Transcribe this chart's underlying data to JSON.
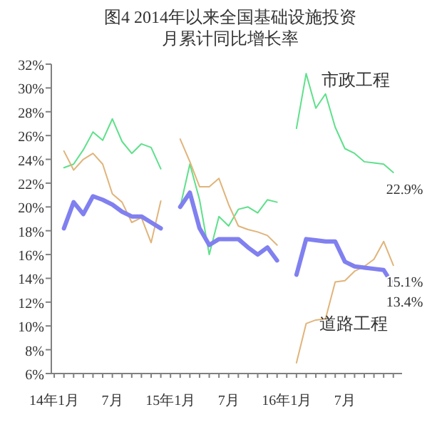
{
  "chart_data": {
    "type": "line",
    "title": "图4 2014年以来全国基础设施投资",
    "subtitle": "月累计同比增长率",
    "categories": [
      "14年1月",
      null,
      null,
      null,
      null,
      null,
      "7月",
      null,
      null,
      null,
      null,
      null,
      "15年1月",
      null,
      null,
      null,
      null,
      null,
      "7月",
      null,
      null,
      null,
      null,
      null,
      "16年1月",
      null,
      null,
      null,
      null,
      null,
      "7月",
      null,
      null,
      null,
      null,
      null
    ],
    "ylim": [
      6,
      32
    ],
    "yticks": [
      {
        "value": 6,
        "label": "6%"
      },
      {
        "value": 8,
        "label": "8%"
      },
      {
        "value": 10,
        "label": "10%"
      },
      {
        "value": 12,
        "label": "12%"
      },
      {
        "value": 14,
        "label": "14%"
      },
      {
        "value": 16,
        "label": "16%"
      },
      {
        "value": 18,
        "label": "18%"
      },
      {
        "value": 20,
        "label": "20%"
      },
      {
        "value": 22,
        "label": "22%"
      },
      {
        "value": 24,
        "label": "24%"
      },
      {
        "value": 26,
        "label": "26%"
      },
      {
        "value": 28,
        "label": "28%"
      },
      {
        "value": 30,
        "label": "30%"
      },
      {
        "value": 32,
        "label": "32%"
      }
    ],
    "grid": false,
    "series": [
      {
        "name": "市政工程",
        "color": "#5ee08a",
        "values": [
          null,
          23.3,
          23.6,
          24.8,
          26.3,
          25.6,
          27.4,
          25.5,
          24.5,
          25.3,
          25.0,
          23.2,
          null,
          20.0,
          23.6,
          20.6,
          16.0,
          19.2,
          18.4,
          19.8,
          20.0,
          19.5,
          20.6,
          20.4,
          null,
          26.6,
          31.2,
          28.3,
          29.5,
          26.7,
          24.9,
          24.5,
          23.8,
          23.7,
          23.6,
          22.9
        ],
        "value_labels": [
          null,
          null,
          null,
          null,
          null,
          null,
          null,
          null,
          null,
          null,
          null,
          null,
          null,
          null,
          null,
          null,
          null,
          null,
          null,
          null,
          null,
          null,
          null,
          null,
          null,
          null,
          null,
          null,
          null,
          null,
          null,
          null,
          null,
          null,
          null,
          "22.9%"
        ]
      },
      {
        "name": "道路工程",
        "color": "#e0b47a",
        "values": [
          null,
          24.7,
          23.1,
          24.0,
          24.5,
          23.6,
          21.1,
          20.4,
          18.7,
          19.1,
          17.0,
          20.5,
          null,
          25.7,
          23.8,
          21.7,
          21.7,
          22.4,
          20.2,
          18.4,
          18.1,
          17.9,
          17.6,
          16.8,
          null,
          6.9,
          10.2,
          10.5,
          10.6,
          13.7,
          13.8,
          14.6,
          15.0,
          15.6,
          17.1,
          15.1
        ],
        "value_labels": [
          null,
          null,
          null,
          null,
          null,
          null,
          null,
          null,
          null,
          null,
          null,
          null,
          null,
          null,
          null,
          null,
          null,
          null,
          null,
          null,
          null,
          null,
          null,
          null,
          null,
          null,
          null,
          null,
          null,
          null,
          null,
          null,
          null,
          null,
          null,
          "15.1%"
        ]
      },
      {
        "color": "#8080f0",
        "values": [
          null,
          18.2,
          20.4,
          19.4,
          20.9,
          20.6,
          20.2,
          19.6,
          19.2,
          19.2,
          18.7,
          18.2,
          null,
          20.0,
          21.2,
          18.2,
          16.8,
          17.3,
          17.3,
          17.3,
          16.6,
          16.0,
          16.6,
          15.5,
          null,
          14.3,
          17.3,
          17.2,
          17.1,
          17.1,
          15.4,
          15.0,
          14.9,
          14.8,
          14.7,
          13.4
        ],
        "value_labels": [
          null,
          null,
          null,
          null,
          null,
          null,
          null,
          null,
          null,
          null,
          null,
          null,
          null,
          null,
          null,
          null,
          null,
          null,
          null,
          null,
          null,
          null,
          null,
          null,
          null,
          null,
          null,
          null,
          null,
          null,
          null,
          null,
          null,
          null,
          null,
          "13.4%"
        ]
      }
    ]
  }
}
